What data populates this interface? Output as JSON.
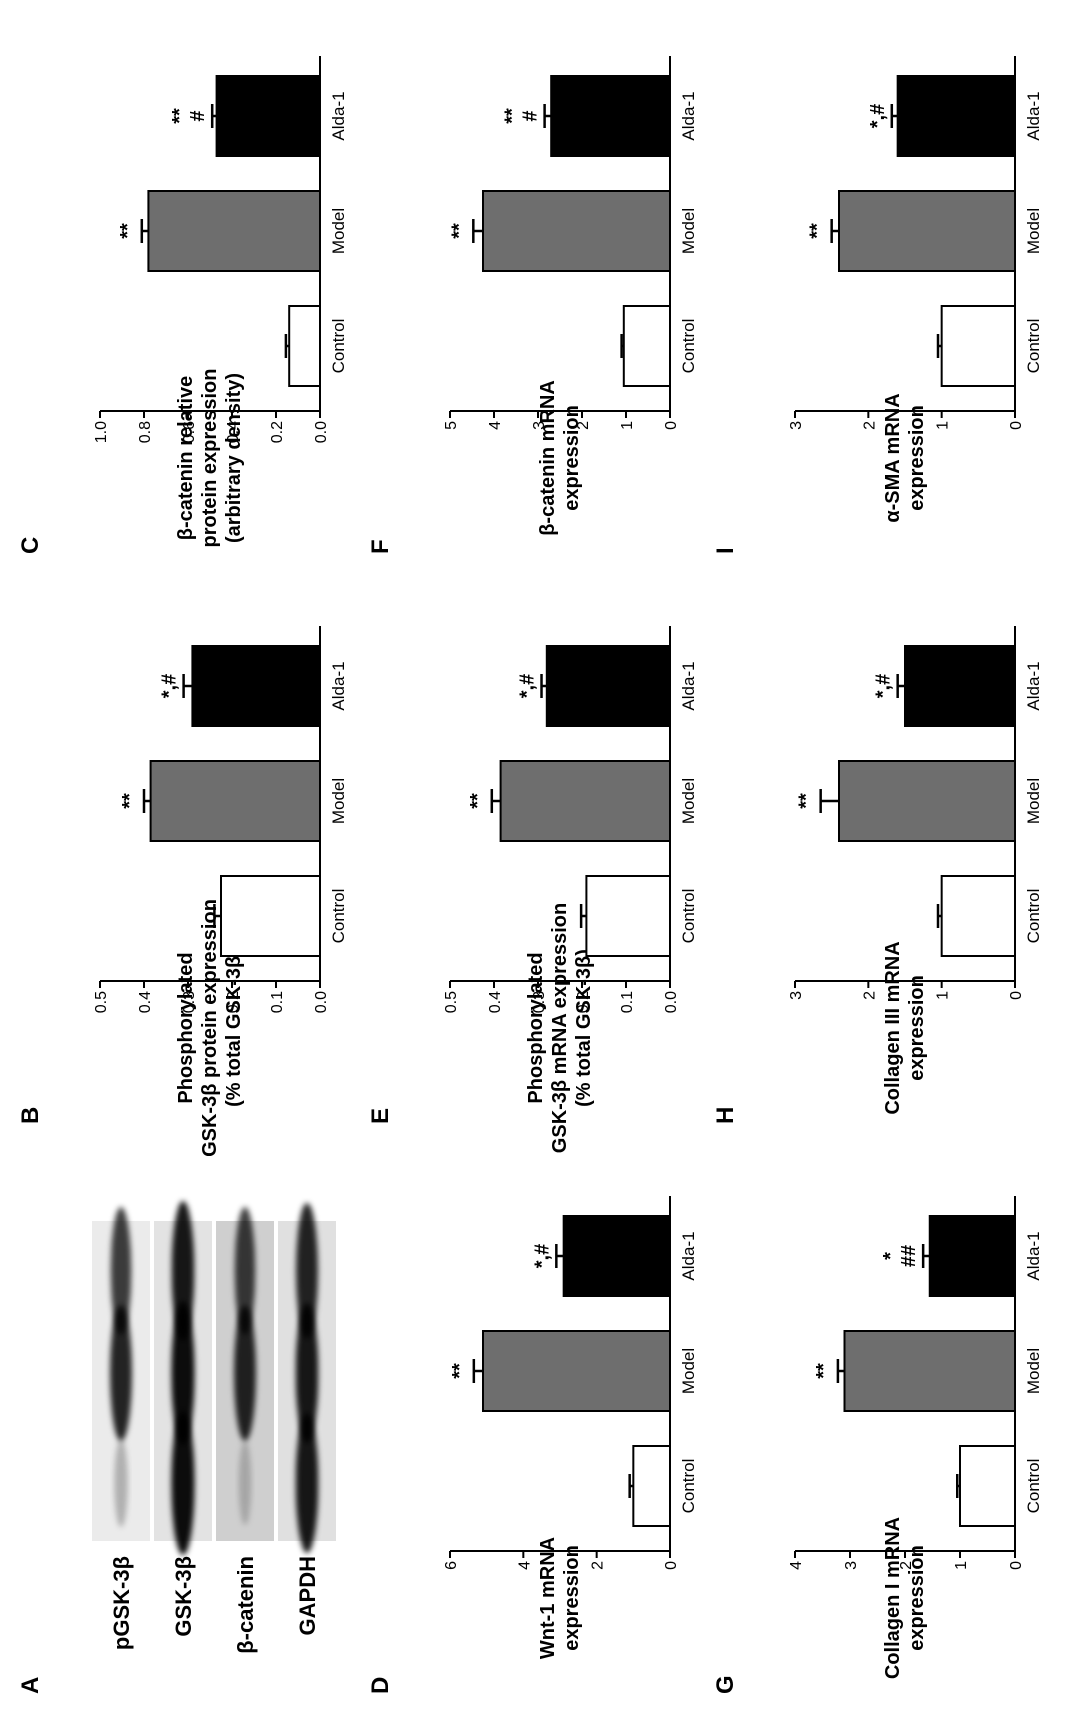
{
  "categories": [
    "Control",
    "Model",
    "Alda-1"
  ],
  "colors": {
    "control": "#ffffff",
    "model": "#6e6e6e",
    "alda": "#000000",
    "axis": "#000000"
  },
  "western_blot": {
    "panel_letter": "A",
    "rows": [
      {
        "label": "pGSK-3β",
        "intensity": [
          0.25,
          0.85,
          0.75
        ]
      },
      {
        "label": "GSK-3β",
        "intensity": [
          0.95,
          0.95,
          0.9
        ]
      },
      {
        "label": "β-catenin",
        "intensity": [
          0.2,
          0.85,
          0.75
        ]
      },
      {
        "label": "GAPDH",
        "intensity": [
          0.9,
          0.9,
          0.85
        ]
      }
    ]
  },
  "chart_data": [
    {
      "panel": "B",
      "type": "bar",
      "ylabel": [
        "Phosphorylated",
        "GSK-3β protein expression",
        "(% total GSK-3β)"
      ],
      "ylim": [
        0,
        0.5
      ],
      "ticks": [
        "0.0",
        "0.1",
        "0.2",
        "0.3",
        "0.4",
        "0.5"
      ],
      "categories": [
        "Control",
        "Model",
        "Alda-1"
      ],
      "values": [
        0.225,
        0.385,
        0.29
      ],
      "errors": [
        0.015,
        0.015,
        0.02
      ],
      "annotations": [
        "",
        "**",
        "*,#"
      ]
    },
    {
      "panel": "C",
      "type": "bar",
      "ylabel": [
        "β-catenin relative",
        "protein expression",
        "(arbitrary density)"
      ],
      "ylim": [
        0,
        1.0
      ],
      "ticks": [
        "0.0",
        "0.2",
        "0.4",
        "0.6",
        "0.8",
        "1.0"
      ],
      "categories": [
        "Control",
        "Model",
        "Alda-1"
      ],
      "values": [
        0.14,
        0.78,
        0.47
      ],
      "errors": [
        0.015,
        0.03,
        0.02
      ],
      "annotations": [
        "",
        "**",
        "**\n#"
      ]
    },
    {
      "panel": "D",
      "type": "bar",
      "ylabel": [
        "Wnt-1 mRNA",
        "expression"
      ],
      "ylim": [
        0,
        6
      ],
      "ticks": [
        "0",
        "2",
        "4",
        "6"
      ],
      "categories": [
        "Control",
        "Model",
        "Alda-1"
      ],
      "values": [
        1.0,
        5.1,
        2.9
      ],
      "errors": [
        0.1,
        0.25,
        0.2
      ],
      "annotations": [
        "",
        "**",
        "*,#"
      ]
    },
    {
      "panel": "E",
      "type": "bar",
      "ylabel": [
        "Phosphorylated",
        "GSK-3β mRNA expression",
        "(% total GSK-3β)"
      ],
      "ylim": [
        0,
        0.5
      ],
      "ticks": [
        "0.0",
        "0.1",
        "0.2",
        "0.3",
        "0.4",
        "0.5"
      ],
      "categories": [
        "Control",
        "Model",
        "Alda-1"
      ],
      "values": [
        0.19,
        0.385,
        0.28
      ],
      "errors": [
        0.012,
        0.02,
        0.012
      ],
      "annotations": [
        "",
        "**",
        "*,#"
      ]
    },
    {
      "panel": "F",
      "type": "bar",
      "ylabel": [
        "β-catenin mRNA",
        "expression"
      ],
      "ylim": [
        0,
        5
      ],
      "ticks": [
        "0",
        "1",
        "2",
        "3",
        "4",
        "5"
      ],
      "categories": [
        "Control",
        "Model",
        "Alda-1"
      ],
      "values": [
        1.05,
        4.25,
        2.7
      ],
      "errors": [
        0.05,
        0.22,
        0.15
      ],
      "annotations": [
        "",
        "**",
        "**\n#"
      ]
    },
    {
      "panel": "G",
      "type": "bar",
      "ylabel": [
        "Collagen I mRNA",
        "expression"
      ],
      "ylim": [
        0,
        4
      ],
      "ticks": [
        "0",
        "1",
        "2",
        "3",
        "4"
      ],
      "categories": [
        "Control",
        "Model",
        "Alda-1"
      ],
      "values": [
        1.0,
        3.1,
        1.55
      ],
      "errors": [
        0.05,
        0.12,
        0.12
      ],
      "annotations": [
        "",
        "**",
        "*\n##"
      ]
    },
    {
      "panel": "H",
      "type": "bar",
      "ylabel": [
        "Collagen III mRNA",
        "expression"
      ],
      "ylim": [
        0,
        3
      ],
      "ticks": [
        "0",
        "1",
        "2",
        "3"
      ],
      "categories": [
        "Control",
        "Model",
        "Alda-1"
      ],
      "values": [
        1.0,
        2.4,
        1.5
      ],
      "errors": [
        0.05,
        0.25,
        0.1
      ],
      "annotations": [
        "",
        "**",
        "*,#"
      ]
    },
    {
      "panel": "I",
      "type": "bar",
      "ylabel": [
        "α-SMA mRNA",
        "expression"
      ],
      "ylim": [
        0,
        3
      ],
      "ticks": [
        "0",
        "1",
        "2",
        "3"
      ],
      "categories": [
        "Control",
        "Model",
        "Alda-1"
      ],
      "values": [
        1.0,
        2.4,
        1.6
      ],
      "errors": [
        0.05,
        0.1,
        0.08
      ],
      "annotations": [
        "",
        "**",
        "*,#"
      ]
    }
  ]
}
